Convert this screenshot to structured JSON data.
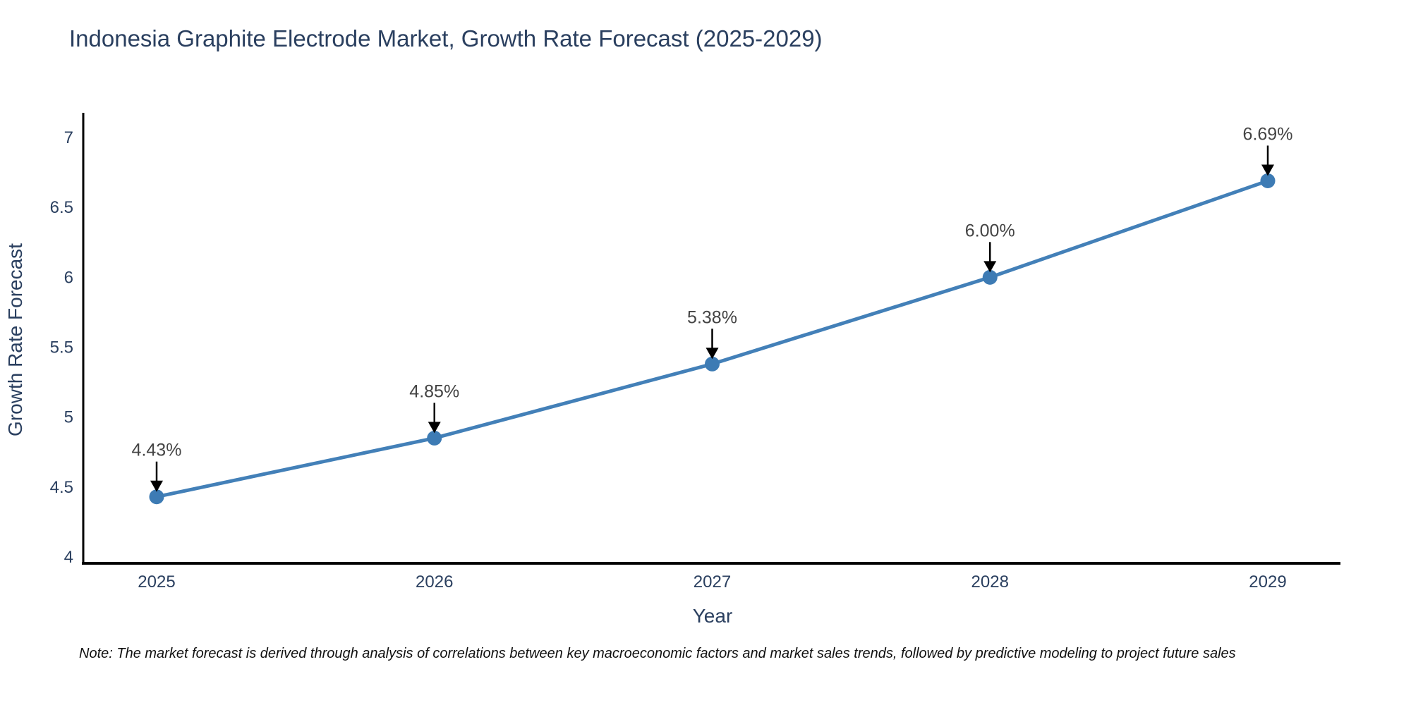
{
  "chart": {
    "note": "Note: The market forecast is derived through analysis of correlations between key macroeconomic factors and market sales trends, followed by predictive modeling to project future sales"
  },
  "chart_data": {
    "type": "line",
    "title": "Indonesia Graphite Electrode Market, Growth Rate Forecast (2025-2029)",
    "xlabel": "Year",
    "ylabel": "Growth Rate Forecast",
    "categories": [
      "2025",
      "2026",
      "2027",
      "2028",
      "2029"
    ],
    "values": [
      4.43,
      4.85,
      5.38,
      6.0,
      6.69
    ],
    "point_labels": [
      "4.43%",
      "4.85%",
      "5.38%",
      "6.00%",
      "6.69%"
    ],
    "ylim": [
      4,
      7
    ],
    "yticks": [
      4,
      4.5,
      5,
      5.5,
      6,
      6.5,
      7
    ],
    "grid": false,
    "legend": false,
    "annotation_style": "black-down-arrow",
    "colors": {
      "line": "#4380b8",
      "marker": "#3d7bb4",
      "axis": "#000000",
      "tick_text": "#2a3f5f",
      "annotation_text": "#444444",
      "arrow": "#000000"
    }
  }
}
